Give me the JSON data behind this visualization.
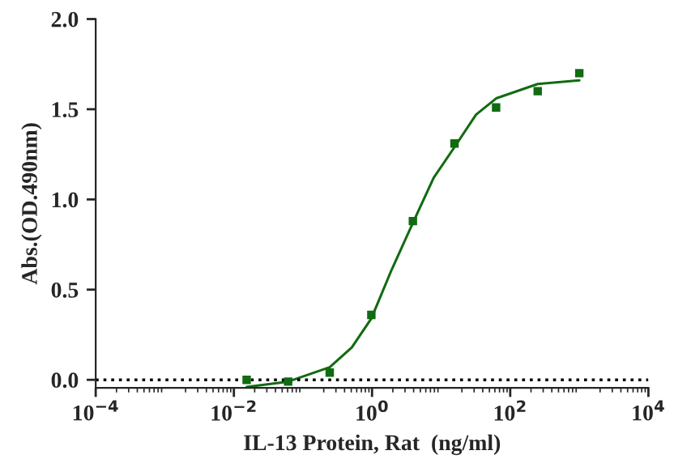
{
  "chart_data": {
    "type": "scatter",
    "xlabel": "IL-13 Protein, Rat  (ng/ml)",
    "ylabel": "Abs.(OD.490nm)",
    "log": "x",
    "marker": "square",
    "grid": false,
    "legend": false,
    "xlim": [
      0.0001,
      10000
    ],
    "xticks": [
      {
        "value": 0.0001,
        "label": "10$^{−4}$"
      },
      {
        "value": 0.01,
        "label": "10$^{−2}$"
      },
      {
        "value": 1,
        "label": "10$^{0}$"
      },
      {
        "value": 100,
        "label": "10$^{2}$"
      },
      {
        "value": 10000,
        "label": "10$^{4}$"
      }
    ],
    "ylim": [
      -0.045,
      2.0
    ],
    "yticks": [
      {
        "value": 0,
        "label": "0.0"
      },
      {
        "value": 0.5,
        "label": "0.5"
      },
      {
        "value": 1,
        "label": "1.0"
      },
      {
        "value": 1.5,
        "label": "1.5"
      },
      {
        "value": 2,
        "label": "2.0"
      }
    ],
    "ref_lines": [
      {
        "axis": "y",
        "value": 0,
        "color": "#000000",
        "line_style": "dotted"
      }
    ],
    "series": [
      {
        "color": "#116b11",
        "x": [
          0.0153,
          0.061,
          0.244,
          0.977,
          3.9,
          15.6,
          62.5,
          250,
          1000
        ],
        "values": [
          0.0,
          -0.01,
          0.04,
          0.36,
          0.88,
          1.31,
          1.51,
          1.6,
          1.7
        ]
      },
      {
        "type": "line",
        "color": "#116b11",
        "marker": "none",
        "x": [
          0.0153,
          0.061,
          0.244,
          0.51,
          0.977,
          1.92,
          3.9,
          7.8,
          15.6,
          32,
          62.5,
          250,
          1000
        ],
        "values": [
          -0.04,
          -0.01,
          0.07,
          0.18,
          0.34,
          0.61,
          0.87,
          1.12,
          1.29,
          1.47,
          1.56,
          1.64,
          1.66
        ]
      }
    ]
  }
}
